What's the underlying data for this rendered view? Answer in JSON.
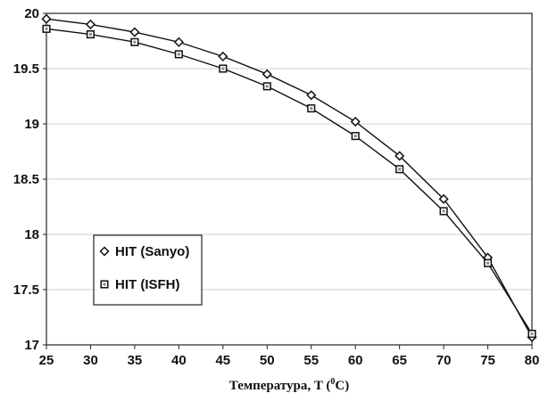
{
  "chart_data": {
    "type": "line",
    "title": "",
    "xlabel": "Температура, T (",
    "xlabel_sup": "0",
    "xlabel_end": "C)",
    "ylabel": "",
    "xlim": [
      25,
      80
    ],
    "ylim": [
      17,
      20
    ],
    "x_ticks": [
      25,
      30,
      35,
      40,
      45,
      50,
      55,
      60,
      65,
      70,
      75,
      80
    ],
    "y_ticks": [
      17,
      17.5,
      18,
      18.5,
      19,
      19.5,
      20
    ],
    "grid": "horizontal",
    "legend_position": "center-left",
    "x": [
      25,
      30,
      35,
      40,
      45,
      50,
      55,
      60,
      65,
      70,
      75,
      80
    ],
    "series": [
      {
        "name": "HIT (Sanyo)",
        "marker": "diamond",
        "color": "#111111",
        "values": [
          19.95,
          19.9,
          19.83,
          19.74,
          19.61,
          19.45,
          19.26,
          19.02,
          18.71,
          18.32,
          17.79,
          17.07
        ]
      },
      {
        "name": "HIT (ISFH)",
        "marker": "square",
        "color": "#111111",
        "values": [
          19.86,
          19.81,
          19.74,
          19.63,
          19.5,
          19.34,
          19.14,
          18.89,
          18.59,
          18.21,
          17.74,
          17.1
        ]
      }
    ]
  }
}
